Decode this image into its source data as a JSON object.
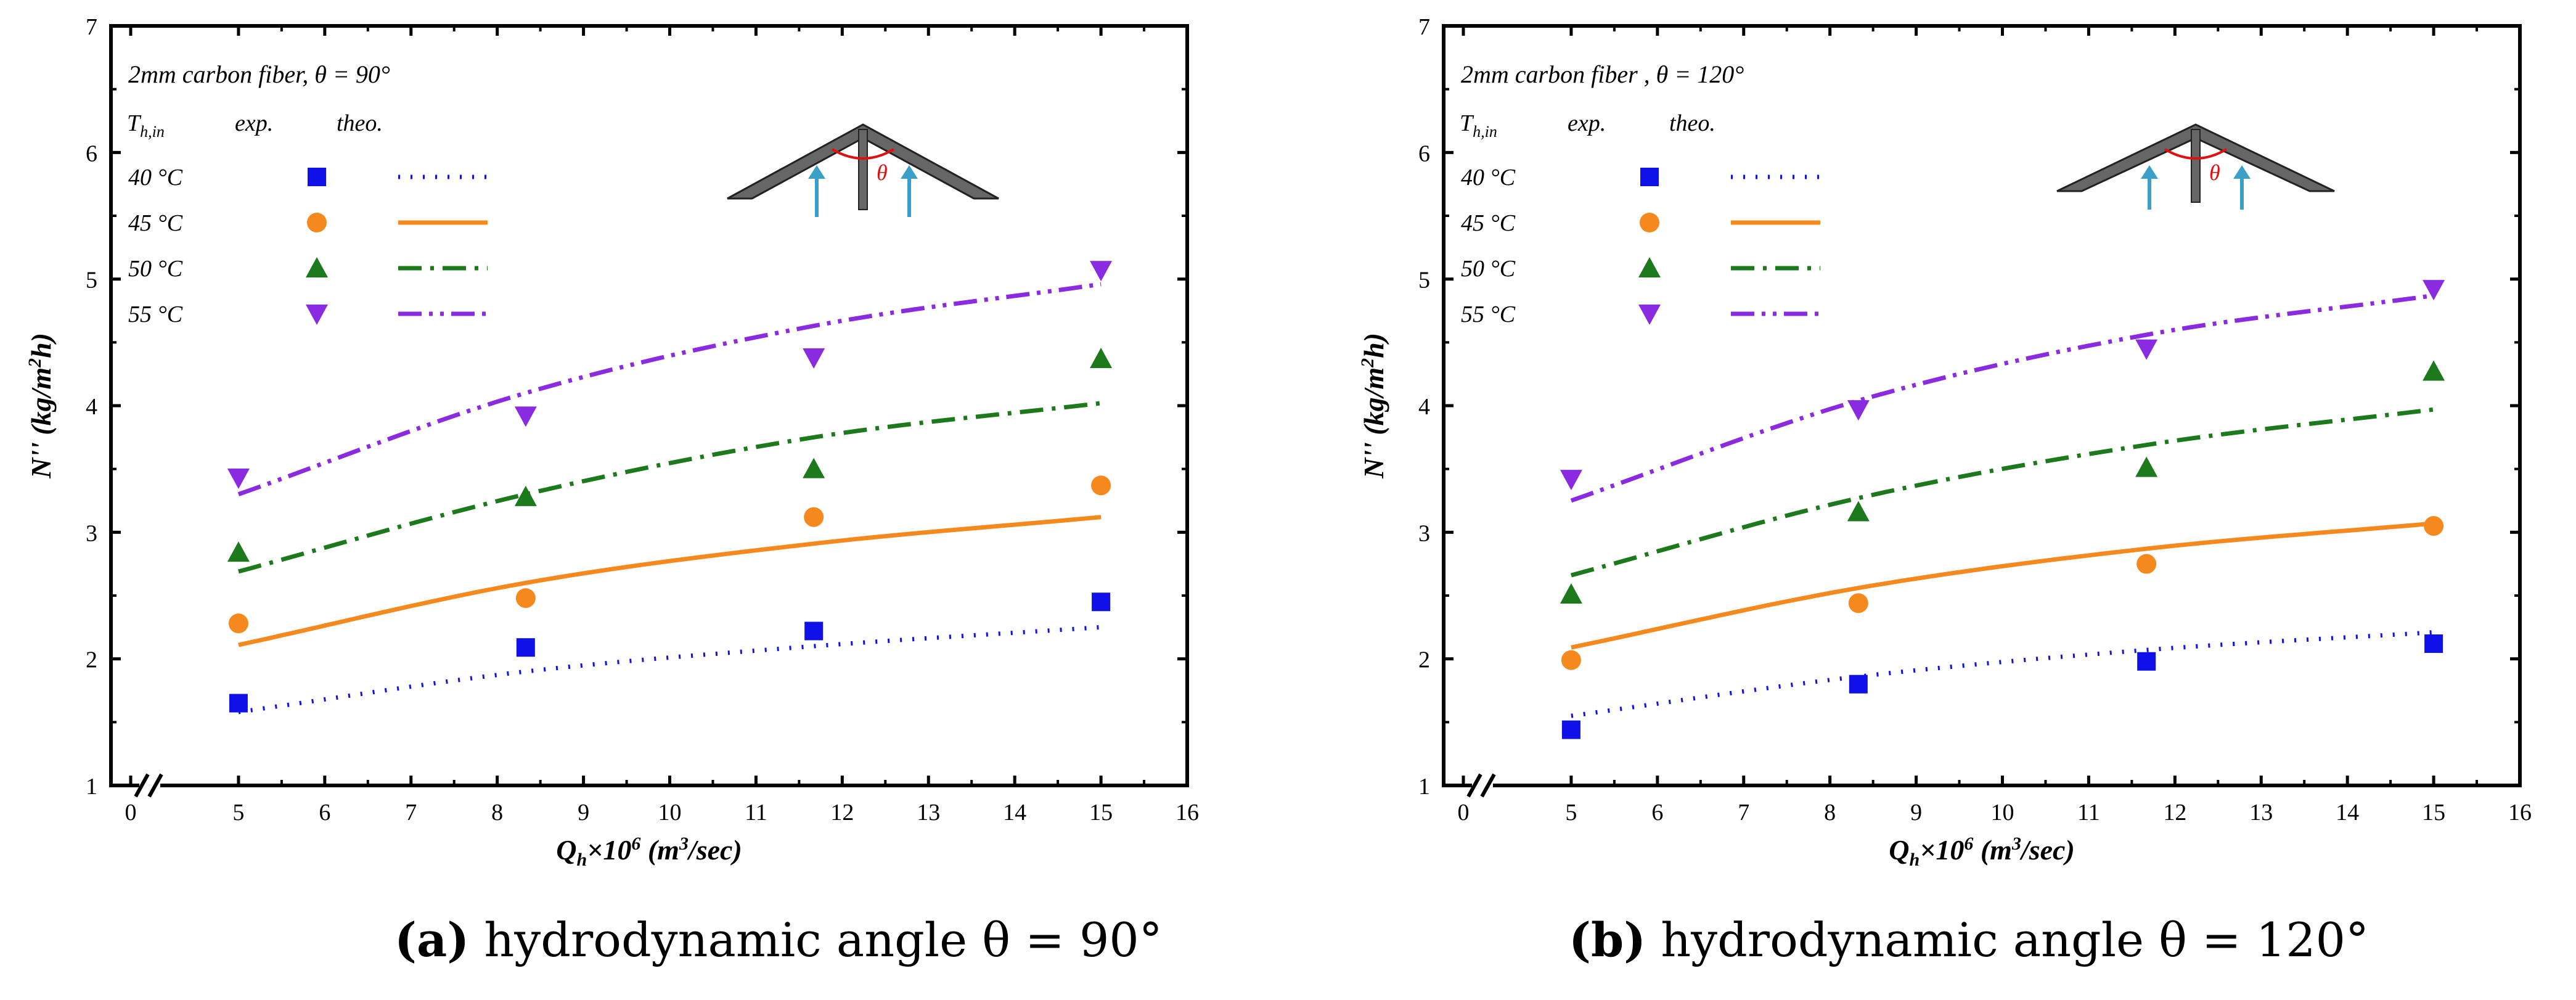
{
  "chart_data": [
    {
      "type": "scatter",
      "annotation": "2mm carbon fiber,  θ = 90°",
      "xlabel": "Q_h×10^6 (m^3/sec)",
      "ylabel": "N'' (kg/m^2h)",
      "xlim": [
        0,
        16
      ],
      "ylim": [
        1,
        7
      ],
      "x_ticks": [
        "0",
        "5",
        "6",
        "7",
        "8",
        "9",
        "10",
        "11",
        "12",
        "13",
        "14",
        "15",
        "16"
      ],
      "y_ticks": [
        "1",
        "2",
        "3",
        "4",
        "5",
        "6",
        "7"
      ],
      "axis_break": true,
      "legend": {
        "col1": "T_h,in",
        "col2": "exp.",
        "col3": "theo.",
        "position": "top-left"
      },
      "theta_symbol": "θ",
      "series": [
        {
          "name": "40 °C",
          "color": "#1010e8",
          "marker": "square",
          "line": "dotted",
          "exp": {
            "x": [
              5,
              8.33,
              11.67,
              15
            ],
            "y": [
              1.65,
              2.09,
              2.22,
              2.45
            ]
          },
          "theo": {
            "x": [
              5,
              8.33,
              11.67,
              15
            ],
            "y": [
              1.58,
              1.9,
              2.1,
              2.25
            ]
          }
        },
        {
          "name": "45 °C",
          "color": "#f5891e",
          "marker": "circle",
          "line": "solid",
          "exp": {
            "x": [
              5,
              8.33,
              11.67,
              15
            ],
            "y": [
              2.28,
              2.48,
              3.12,
              3.37
            ]
          },
          "theo": {
            "x": [
              5,
              8.33,
              11.67,
              15
            ],
            "y": [
              2.11,
              2.6,
              2.91,
              3.12
            ]
          }
        },
        {
          "name": "50 °C",
          "color": "#1c7a1c",
          "marker": "triangle-up",
          "line": "dash-dot",
          "exp": {
            "x": [
              5,
              8.33,
              11.67,
              15
            ],
            "y": [
              2.84,
              3.28,
              3.5,
              4.37
            ]
          },
          "theo": {
            "x": [
              5,
              8.33,
              11.67,
              15
            ],
            "y": [
              2.69,
              3.3,
              3.75,
              4.02
            ]
          }
        },
        {
          "name": "55 °C",
          "color": "#8a2be2",
          "marker": "triangle-down",
          "line": "dash-dot-dot",
          "exp": {
            "x": [
              5,
              8.33,
              11.67,
              15
            ],
            "y": [
              3.43,
              3.92,
              4.38,
              5.07
            ]
          },
          "theo": {
            "x": [
              5,
              8.33,
              11.67,
              15
            ],
            "y": [
              3.3,
              4.1,
              4.63,
              4.96
            ]
          }
        }
      ]
    },
    {
      "type": "scatter",
      "annotation": "2mm carbon fiber ,  θ = 120°",
      "xlabel": "Q_h×10^6 (m^3/sec)",
      "ylabel": "N'' (kg/m^2h)",
      "xlim": [
        0,
        16
      ],
      "ylim": [
        1,
        7
      ],
      "x_ticks": [
        "0",
        "5",
        "6",
        "7",
        "8",
        "9",
        "10",
        "11",
        "12",
        "13",
        "14",
        "15",
        "16"
      ],
      "y_ticks": [
        "1",
        "2",
        "3",
        "4",
        "5",
        "6",
        "7"
      ],
      "axis_break": true,
      "legend": {
        "col1": "T_h,in",
        "col2": "exp.",
        "col3": "theo.",
        "position": "top-left"
      },
      "theta_symbol": "θ",
      "series": [
        {
          "name": "40 °C",
          "color": "#1010e8",
          "marker": "square",
          "line": "dotted",
          "exp": {
            "x": [
              5,
              8.33,
              11.67,
              15
            ],
            "y": [
              1.44,
              1.8,
              1.98,
              2.12
            ]
          },
          "theo": {
            "x": [
              5,
              8.33,
              11.67,
              15
            ],
            "y": [
              1.55,
              1.86,
              2.07,
              2.21
            ]
          }
        },
        {
          "name": "45 °C",
          "color": "#f5891e",
          "marker": "circle",
          "line": "solid",
          "exp": {
            "x": [
              5,
              8.33,
              11.67,
              15
            ],
            "y": [
              1.99,
              2.44,
              2.75,
              3.05
            ]
          },
          "theo": {
            "x": [
              5,
              8.33,
              11.67,
              15
            ],
            "y": [
              2.09,
              2.56,
              2.87,
              3.07
            ]
          }
        },
        {
          "name": "50 °C",
          "color": "#1c7a1c",
          "marker": "triangle-up",
          "line": "dash-dot",
          "exp": {
            "x": [
              5,
              8.33,
              11.67,
              15
            ],
            "y": [
              2.51,
              3.16,
              3.51,
              4.27
            ]
          },
          "theo": {
            "x": [
              5,
              8.33,
              11.67,
              15
            ],
            "y": [
              2.66,
              3.27,
              3.69,
              3.97
            ]
          }
        },
        {
          "name": "55 °C",
          "color": "#8a2be2",
          "marker": "triangle-down",
          "line": "dash-dot-dot",
          "exp": {
            "x": [
              5,
              8.33,
              11.67,
              15
            ],
            "y": [
              3.42,
              3.97,
              4.45,
              4.92
            ]
          },
          "theo": {
            "x": [
              5,
              8.33,
              11.67,
              15
            ],
            "y": [
              3.25,
              4.04,
              4.56,
              4.87
            ]
          }
        }
      ]
    }
  ],
  "captions": [
    {
      "letter": "(a)",
      "text": "hydrodynamic angle  θ = 90°"
    },
    {
      "letter": "(b)",
      "text": "hydrodynamic angle θ = 120°"
    }
  ]
}
